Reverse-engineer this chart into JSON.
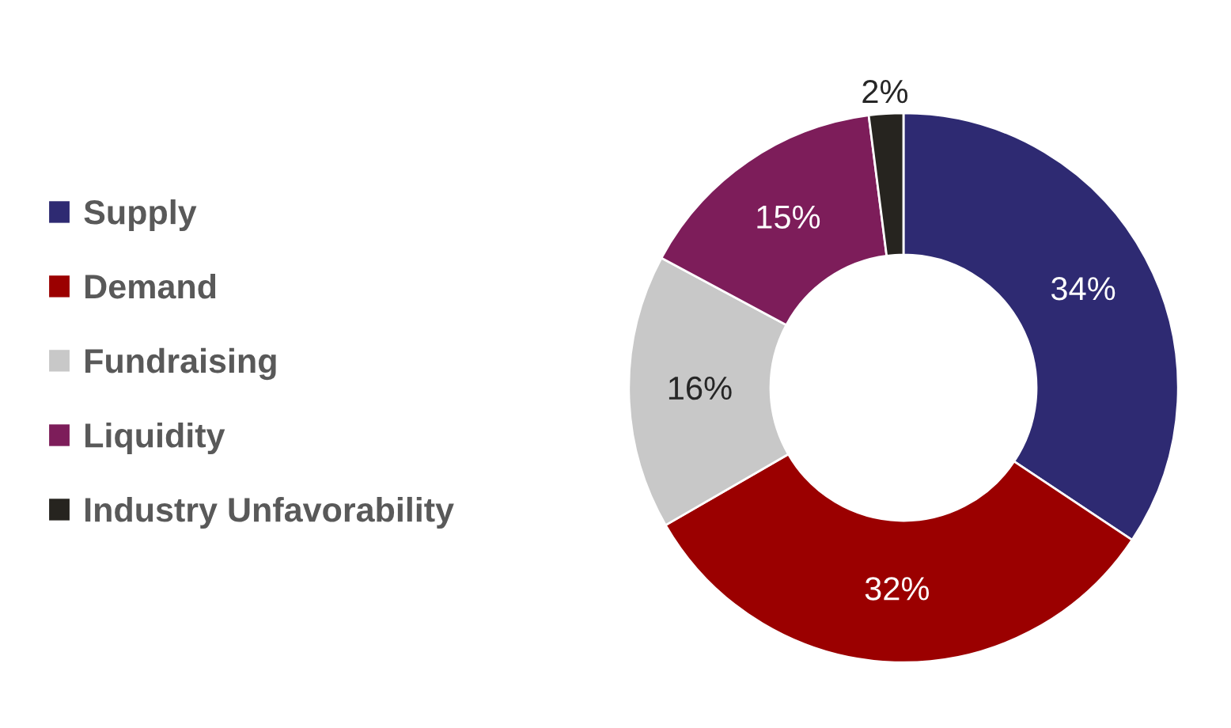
{
  "chart_data": {
    "type": "donut",
    "categories": [
      "Supply",
      "Demand",
      "Fundraising",
      "Liquidity",
      "Industry Unfavorability"
    ],
    "values": [
      34,
      32,
      16,
      15,
      2
    ],
    "colors": [
      "#2e2a72",
      "#9b0000",
      "#c8c8c8",
      "#7d1d5a",
      "#26241f"
    ],
    "value_labels": [
      "34%",
      "32%",
      "16%",
      "15%",
      "2%"
    ],
    "legend": "left"
  }
}
